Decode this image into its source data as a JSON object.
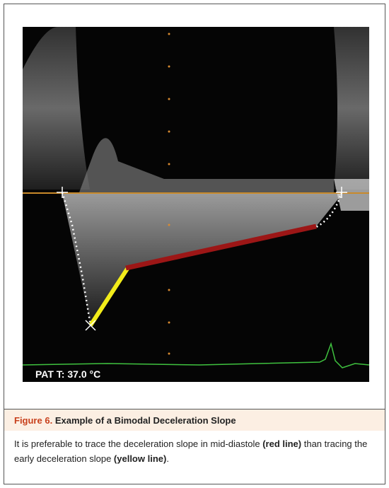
{
  "figure": {
    "overlay_label": "PAT T: 37.0 °C"
  },
  "caption": {
    "label": "Figure 6.",
    "title": "Example of a Bimodal Deceleration Slope",
    "text": [
      "It is preferable to trace the deceleration slope in mid-diastole ",
      "(red line)",
      " than tracing the early deceleration slope ",
      "(yellow line)",
      "."
    ]
  }
}
